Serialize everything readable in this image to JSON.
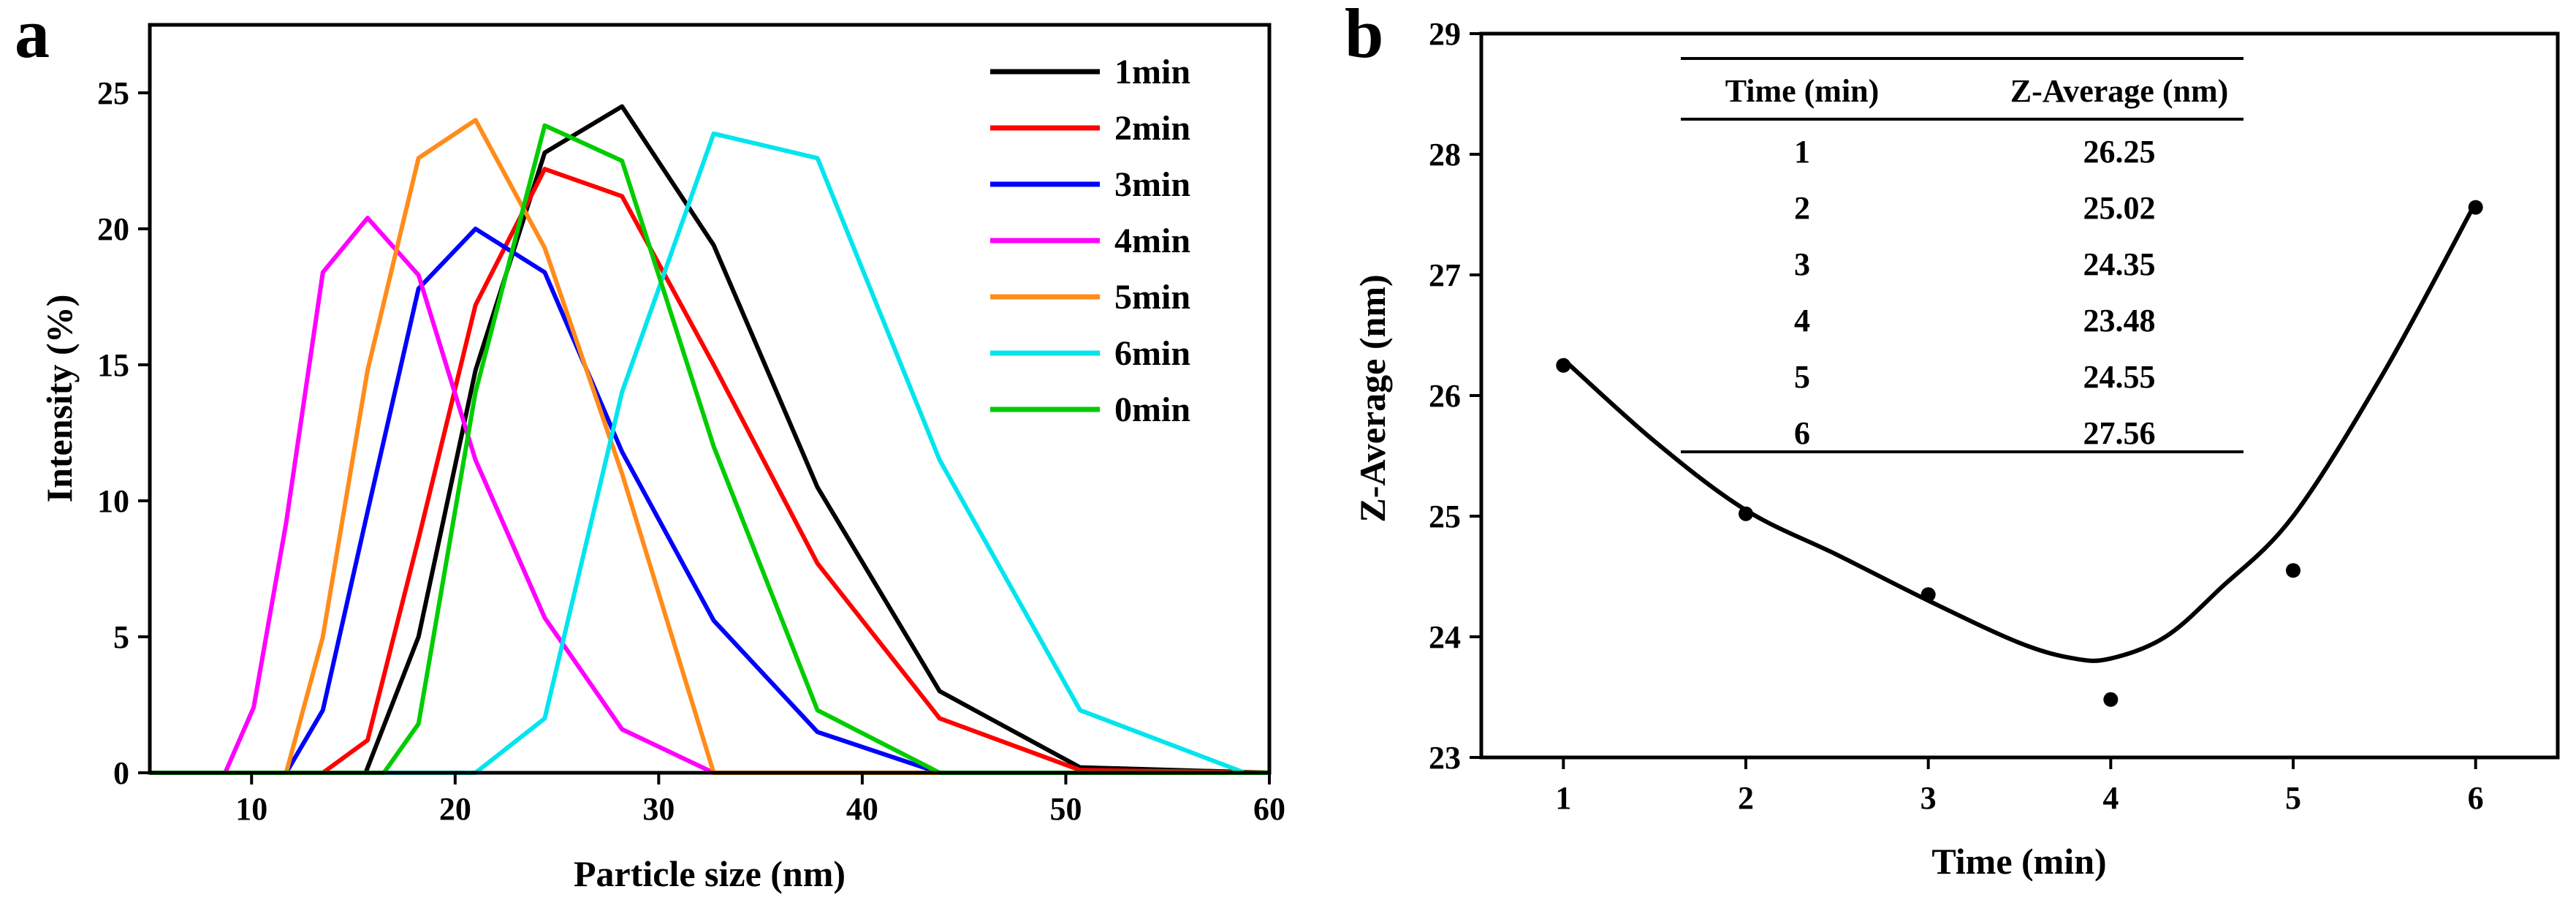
{
  "panels": {
    "a": {
      "letter": "a"
    },
    "b": {
      "letter": "b"
    }
  },
  "chart_data": [
    {
      "type": "line",
      "xlabel": "Particle size (nm)",
      "ylabel": "Intensity (%)",
      "xlim": [
        5,
        60
      ],
      "ylim": [
        0,
        27.5
      ],
      "xticks": [
        10,
        20,
        30,
        40,
        50,
        60
      ],
      "yticks": [
        0,
        5,
        10,
        15,
        20,
        25
      ],
      "legend_position": "top-right",
      "grid": false,
      "series": [
        {
          "name": "1min",
          "color": "#000000",
          "x": [
            5,
            15.6,
            18.2,
            21.0,
            24.4,
            28.2,
            32.7,
            37.8,
            43.8,
            50.7,
            60
          ],
          "y": [
            0,
            0,
            5.0,
            14.8,
            22.8,
            24.5,
            19.4,
            10.5,
            3.0,
            0.2,
            0
          ]
        },
        {
          "name": "2min",
          "color": "#ff0000",
          "x": [
            5,
            13.5,
            15.7,
            18.2,
            21.0,
            24.4,
            28.2,
            32.7,
            37.8,
            43.8,
            50.7,
            60
          ],
          "y": [
            0,
            0,
            1.2,
            8.6,
            17.2,
            22.2,
            21.2,
            15.0,
            7.7,
            2.0,
            0.1,
            0
          ]
        },
        {
          "name": "3min",
          "color": "#0000ff",
          "x": [
            5,
            11.7,
            13.5,
            15.7,
            18.2,
            21.0,
            24.4,
            28.2,
            32.7,
            37.8,
            43.8,
            60
          ],
          "y": [
            0,
            0,
            2.3,
            9.6,
            17.8,
            20.0,
            18.4,
            11.8,
            5.6,
            1.5,
            0,
            0
          ]
        },
        {
          "name": "4min",
          "color": "#ff00ff",
          "x": [
            5,
            8.7,
            10.1,
            11.7,
            13.5,
            15.7,
            18.2,
            21.0,
            24.4,
            28.2,
            32.7,
            60
          ],
          "y": [
            0,
            0,
            2.4,
            9.2,
            18.4,
            20.4,
            18.3,
            11.5,
            5.7,
            1.6,
            0,
            0
          ]
        },
        {
          "name": "5min",
          "color": "#ff8c1a",
          "x": [
            5,
            11.7,
            13.5,
            15.7,
            18.2,
            21.0,
            24.4,
            28.2,
            32.7,
            60
          ],
          "y": [
            0,
            0,
            5.0,
            14.8,
            22.6,
            24.0,
            19.3,
            11.0,
            0,
            0
          ]
        },
        {
          "name": "6min",
          "color": "#00e5ee",
          "x": [
            5,
            21.0,
            24.4,
            28.2,
            32.7,
            37.8,
            43.8,
            50.7,
            58.8,
            60
          ],
          "y": [
            0,
            0,
            2.0,
            14.0,
            23.5,
            22.6,
            11.5,
            2.3,
            0,
            0
          ]
        },
        {
          "name": "0min",
          "color": "#00cc00",
          "x": [
            5,
            16.5,
            18.2,
            21.0,
            24.4,
            28.2,
            32.7,
            37.8,
            43.8,
            60
          ],
          "y": [
            0,
            0,
            1.8,
            14.0,
            23.8,
            22.5,
            12.0,
            2.3,
            0,
            0
          ]
        }
      ]
    },
    {
      "type": "scatter",
      "xlabel": "Time (min)",
      "ylabel": "Z-Average (nm)",
      "xlim": [
        0.55,
        6.45
      ],
      "ylim": [
        23,
        29
      ],
      "xticks": [
        1,
        2,
        3,
        4,
        5,
        6
      ],
      "yticks": [
        23,
        24,
        25,
        26,
        27,
        28,
        29
      ],
      "grid": false,
      "points": {
        "x": [
          1,
          2,
          3,
          4,
          5,
          6
        ],
        "y": [
          26.25,
          25.02,
          24.35,
          23.48,
          24.55,
          27.56
        ]
      },
      "fit_curve": {
        "x": [
          1,
          1.5,
          2,
          2.5,
          3,
          3.5,
          3.8,
          4.0,
          4.3,
          4.6,
          5,
          5.5,
          6
        ],
        "y": [
          26.3,
          25.62,
          25.05,
          24.68,
          24.3,
          23.95,
          23.82,
          23.82,
          24.0,
          24.4,
          25.0,
          26.2,
          27.6
        ]
      },
      "table": {
        "headers": [
          "Time (min)",
          "Z-Average (nm)"
        ],
        "rows": [
          [
            "1",
            "26.25"
          ],
          [
            "2",
            "25.02"
          ],
          [
            "3",
            "24.35"
          ],
          [
            "4",
            "23.48"
          ],
          [
            "5",
            "24.55"
          ],
          [
            "6",
            "27.56"
          ]
        ]
      }
    }
  ]
}
